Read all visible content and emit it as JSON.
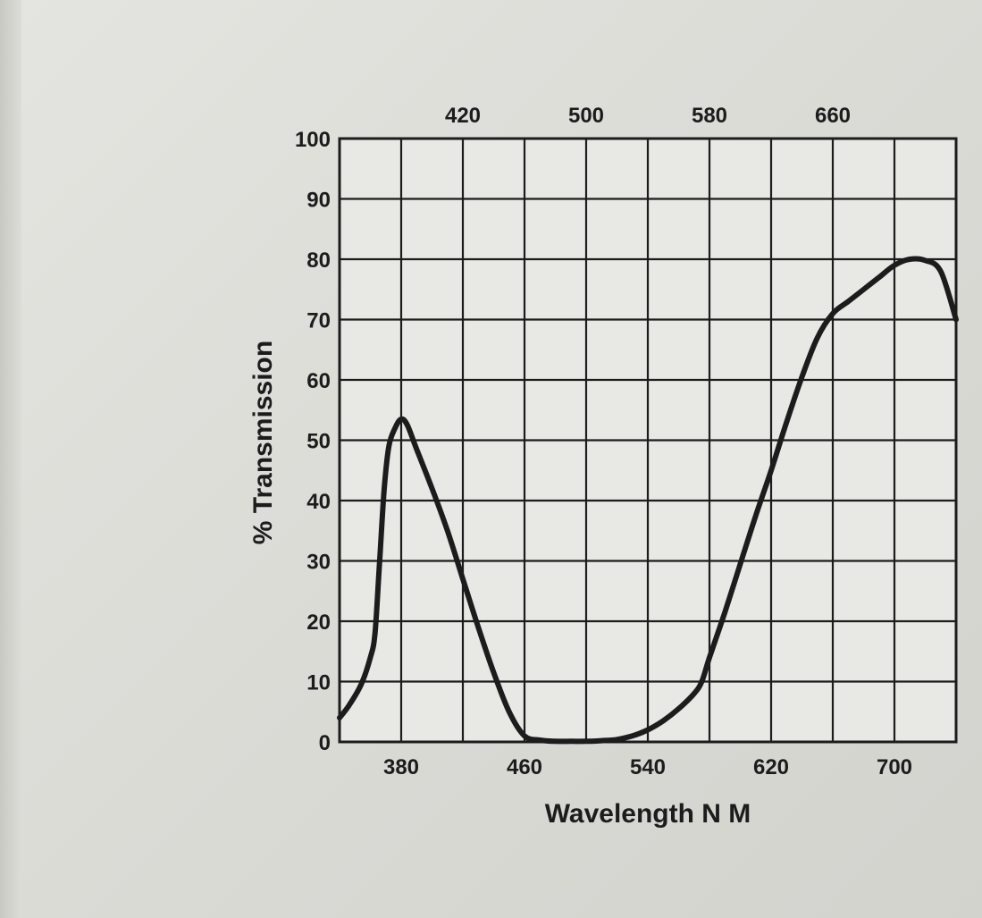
{
  "colors": {
    "ink": "#1c1c1c",
    "paper": "#e8e8e4"
  },
  "chart_data": {
    "type": "line",
    "title": "",
    "xlabel": "Wavelength N M",
    "ylabel": "% Transmission",
    "xlim": [
      340,
      740
    ],
    "ylim": [
      0,
      100
    ],
    "grid": true,
    "x_ticks_bottom": [
      "380",
      "460",
      "540",
      "620",
      "700"
    ],
    "x_ticks_top": [
      "420",
      "500",
      "580",
      "660"
    ],
    "y_ticks": [
      "0",
      "10",
      "20",
      "30",
      "40",
      "50",
      "60",
      "70",
      "80",
      "90",
      "100"
    ],
    "series": [
      {
        "name": "",
        "x": [
          340,
          346,
          354,
          360,
          363,
          366,
          369,
          372,
          376,
          380,
          384,
          390,
          400,
          410,
          420,
          430,
          440,
          450,
          460,
          470,
          480,
          490,
          500,
          510,
          520,
          530,
          540,
          550,
          560,
          570,
          575,
          580,
          590,
          600,
          610,
          620,
          630,
          640,
          650,
          660,
          670,
          680,
          690,
          700,
          710,
          720,
          730,
          740
        ],
        "y": [
          4,
          6,
          9.5,
          14,
          18,
          30,
          42,
          49,
          52,
          53.5,
          52.5,
          48.5,
          42,
          35,
          27,
          19,
          11.5,
          5,
          1,
          0.3,
          0.1,
          0.1,
          0.1,
          0.2,
          0.4,
          1,
          2,
          3.5,
          5.5,
          8,
          10,
          14,
          21.5,
          29.5,
          37.5,
          45,
          53,
          60.5,
          67,
          71,
          73,
          75,
          77,
          79,
          80,
          79.8,
          78,
          70
        ]
      }
    ]
  }
}
